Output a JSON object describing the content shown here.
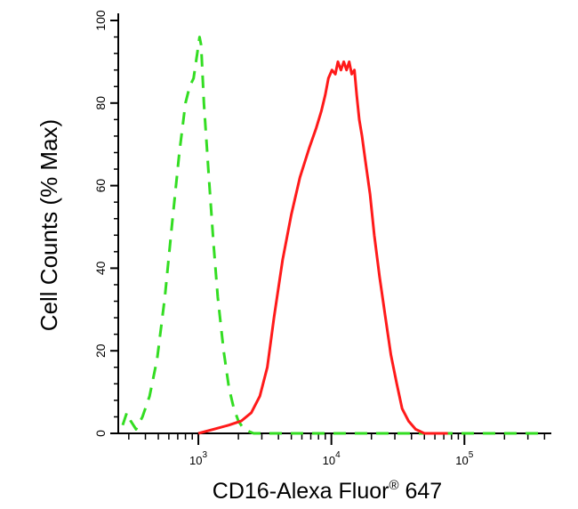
{
  "chart_data": {
    "type": "line",
    "title": "",
    "xlabel_main": "CD16-Alexa Fluor",
    "xlabel_sup": "®",
    "xlabel_tail": " 647",
    "ylabel": "Cell Counts (% Max)",
    "x_scale": "log",
    "xlim": [
      250,
      450000
    ],
    "ylim": [
      0,
      100
    ],
    "y_ticks": [
      {
        "value": 0,
        "label": "0"
      },
      {
        "value": 20,
        "label": "20"
      },
      {
        "value": 40,
        "label": "40"
      },
      {
        "value": 60,
        "label": "60"
      },
      {
        "value": 80,
        "label": "80"
      },
      {
        "value": 100,
        "label": "100"
      }
    ],
    "x_ticks": [
      {
        "value": 1000,
        "base": "10",
        "exp": "3"
      },
      {
        "value": 10000,
        "base": "10",
        "exp": "4"
      },
      {
        "value": 100000,
        "base": "10",
        "exp": "5"
      }
    ],
    "grid": false,
    "legend": "none",
    "series": [
      {
        "color": "#33dd22",
        "line_style": "dashed",
        "x": [
          270,
          290,
          310,
          340,
          380,
          430,
          490,
          560,
          640,
          720,
          800,
          860,
          920,
          980,
          1020,
          1050,
          1100,
          1200,
          1300,
          1400,
          1550,
          1700,
          1850,
          2000,
          2200,
          2600,
          3500,
          5000,
          10000,
          20000,
          50000,
          100000,
          200000,
          400000
        ],
        "y": [
          2,
          5,
          3,
          1,
          4,
          9,
          18,
          33,
          52,
          68,
          80,
          84,
          86,
          92,
          96,
          94,
          80,
          62,
          46,
          33,
          20,
          11,
          6,
          3,
          1,
          0,
          0,
          0,
          0,
          0,
          0,
          0,
          0,
          0
        ]
      },
      {
        "color": "#ff1a1a",
        "line_style": "solid",
        "x": [
          1000,
          1300,
          1700,
          2100,
          2500,
          2900,
          3300,
          3700,
          4300,
          5000,
          5800,
          6800,
          7700,
          8400,
          9000,
          9500,
          10100,
          10700,
          11200,
          11800,
          12400,
          13000,
          13600,
          14200,
          14900,
          15500,
          16200,
          17000,
          18000,
          19500,
          21000,
          23000,
          25500,
          28000,
          31000,
          34000,
          38000,
          43000,
          50000,
          58000,
          65000,
          75000
        ],
        "y": [
          0,
          1,
          2,
          3,
          5,
          9,
          16,
          28,
          42,
          53,
          62,
          69,
          74,
          78,
          82,
          86,
          88,
          87,
          90,
          88,
          90,
          88,
          90,
          87,
          88,
          82,
          76,
          72,
          66,
          58,
          48,
          38,
          28,
          19,
          12,
          6,
          3,
          1,
          0,
          0,
          0,
          0
        ]
      }
    ]
  }
}
